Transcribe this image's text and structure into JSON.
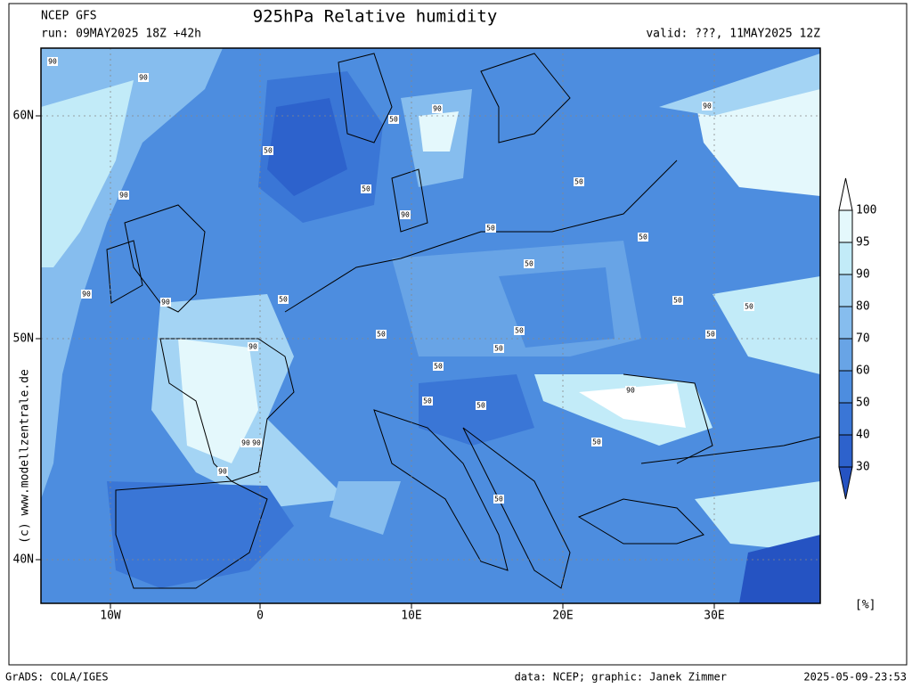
{
  "header": {
    "model": "NCEP GFS",
    "run": "run: 09MAY2025 18Z +42h",
    "title": "925hPa Relative humidity",
    "valid": "valid: ???, 11MAY2025 12Z"
  },
  "map": {
    "lat_labels": [
      "60N",
      "50N",
      "40N"
    ],
    "lon_labels": [
      "10W",
      "0",
      "10E",
      "20E",
      "30E"
    ],
    "contour_labels": [
      "90",
      "90",
      "90",
      "90",
      "90",
      "90",
      "90",
      "90",
      "90",
      "90",
      "90",
      "90",
      "90",
      "50",
      "50",
      "50",
      "50",
      "50",
      "50",
      "50",
      "50",
      "50",
      "50",
      "50",
      "50",
      "50",
      "50",
      "50",
      "50",
      "50",
      "50",
      "50"
    ],
    "credit": "(c) www.modellzentrale.de"
  },
  "colorbar": {
    "labels": [
      "100",
      "95",
      "90",
      "80",
      "70",
      "60",
      "50",
      "40",
      "30"
    ],
    "colors": [
      "#ffffff",
      "#e4f8fc",
      "#c2ebf8",
      "#a4d4f4",
      "#86bdee",
      "#68a4e6",
      "#4d8ddf",
      "#3a76d6",
      "#2d62cc",
      "#2553c2"
    ],
    "unit": "[%]"
  },
  "footer": {
    "software": "GrADS: COLA/IGES",
    "source": "data: NCEP; graphic: Janek Zimmer",
    "timestamp": "2025-05-09-23:53"
  }
}
